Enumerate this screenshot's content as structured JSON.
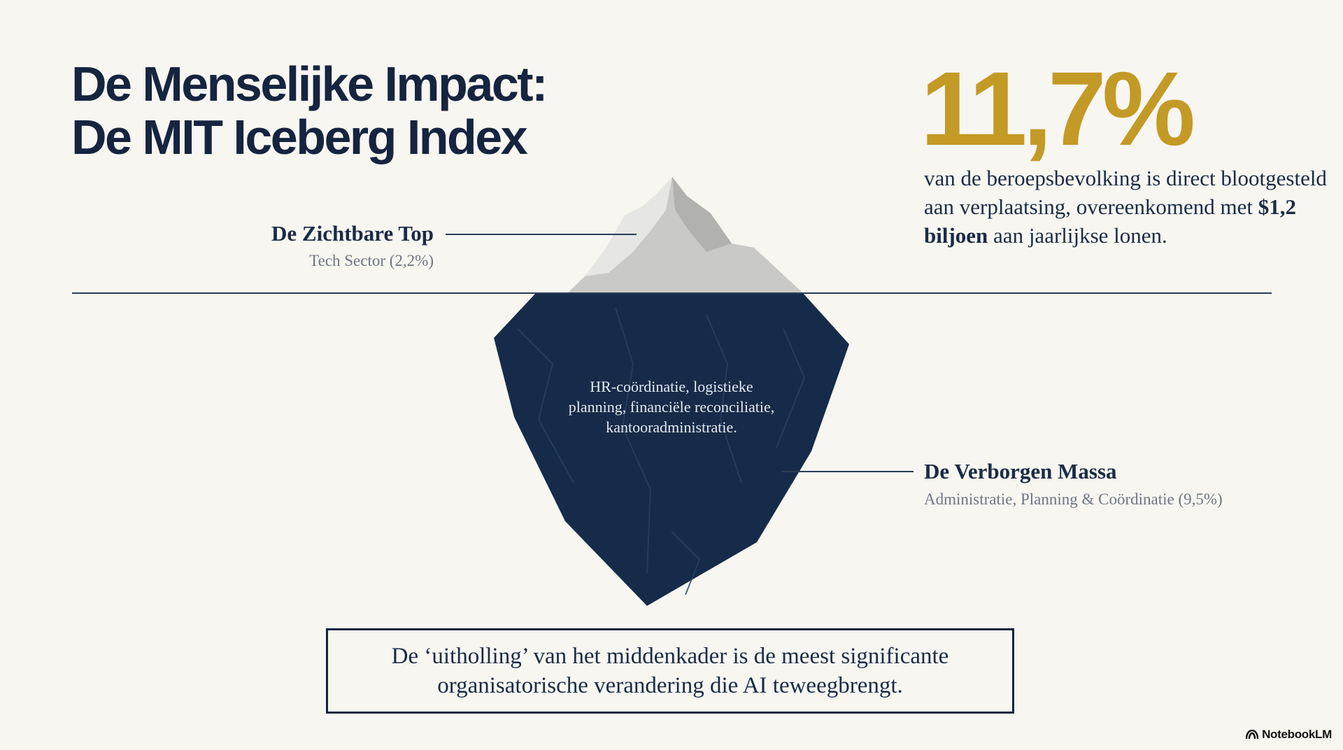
{
  "title": {
    "line1": "De Menselijke Impact:",
    "line2": "De MIT Iceberg Index"
  },
  "stat": {
    "value": "11,7%",
    "text_before": "van de beroepsbevolking is direct blootgesteld aan verplaatsing, overeenkomend met ",
    "text_bold": "$1,2 biljoen",
    "text_after": " aan jaarlijkse lonen."
  },
  "visible_top": {
    "title": "De Zichtbare Top",
    "subtitle": "Tech Sector (2,2%)"
  },
  "hidden_mass": {
    "title": "De Verborgen Massa",
    "subtitle": "Administratie, Planning & Coördinatie (9,5%)",
    "description": "HR-coördinatie, logistieke planning, financiële reconciliatie, kantooradministratie."
  },
  "quote": "De ‘uitholling’ van het middenkader is de meest significante organisatorische verandering die AI teweegbrengt.",
  "brand": "NotebookLM",
  "colors": {
    "background": "#f7f6f1",
    "navy": "#15243f",
    "gold": "#c49a26",
    "ice_above": "#c9c9c7",
    "ice_below": "#162b49"
  }
}
